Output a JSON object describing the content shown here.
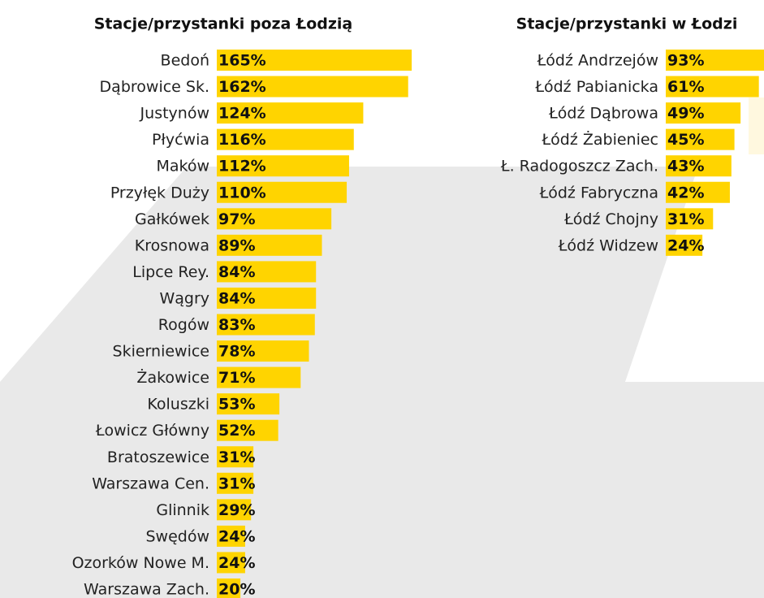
{
  "chart_data": [
    {
      "type": "bar",
      "title": "Stacje/przystanki poza Łodzią",
      "color": "#ffd400",
      "categories": [
        "Bedoń",
        "Dąbrowice Sk.",
        "Justynów",
        "Płyćwia",
        "Maków",
        "Przyłęk Duży",
        "Gałkówek",
        "Krosnowa",
        "Lipce Rey.",
        "Wągry",
        "Rogów",
        "Skierniewice",
        "Żakowice",
        "Koluszki",
        "Łowicz Główny",
        "Bratoszewice",
        "Warszawa Cen.",
        "Glinnik",
        "Swędów",
        "Ozorków Nowe M.",
        "Warszawa Zach."
      ],
      "values": [
        165,
        162,
        124,
        116,
        112,
        110,
        97,
        89,
        84,
        84,
        83,
        78,
        71,
        53,
        52,
        31,
        31,
        29,
        24,
        24,
        20
      ],
      "value_labels": [
        "165%",
        "162%",
        "124%",
        "116%",
        "112%",
        "110%",
        "97%",
        "89%",
        "84%",
        "84%",
        "83%",
        "78%",
        "71%",
        "53%",
        "52%",
        "31%",
        "31%",
        "29%",
        "24%",
        "24%",
        "20%"
      ]
    },
    {
      "type": "bar",
      "title": "Stacje/przystanki w Łodzi",
      "color": "#ffd400",
      "categories": [
        "Łódź Andrzejów",
        "Łódź Pabianicka",
        "Łódź Dąbrowa",
        "Łódź Żabieniec",
        "Ł. Radogoszcz Zach.",
        "Łódź Fabryczna",
        "Łódź Chojny",
        "Łódź Widzew"
      ],
      "values": [
        93,
        61,
        49,
        45,
        43,
        42,
        31,
        24
      ],
      "value_labels": [
        "93%",
        "61%",
        "49%",
        "45%",
        "43%",
        "42%",
        "31%",
        "24%"
      ]
    }
  ]
}
